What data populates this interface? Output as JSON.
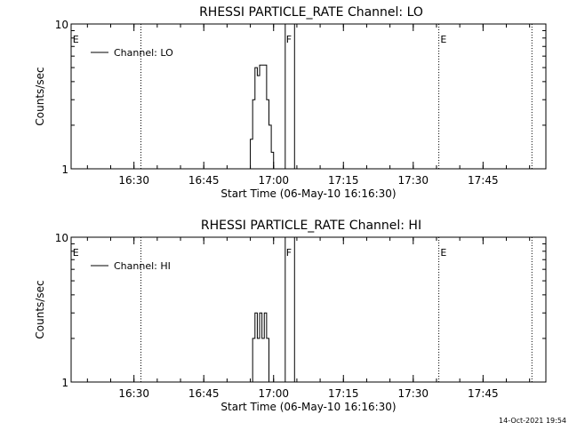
{
  "timestamp": "14-Oct-2021 19:54",
  "chart_data": [
    {
      "type": "line",
      "title": "RHESSI PARTICLE_RATE Channel: LO",
      "xlabel": "Start Time (06-May-10 16:16:30)",
      "ylabel": "Counts/sec",
      "y_scale": "log",
      "ylim": [
        1,
        10
      ],
      "xlim": [
        "16:16:30",
        "17:58:30"
      ],
      "y_ticks": [
        {
          "v": 1,
          "label": "1"
        },
        {
          "v": 10,
          "label": "10"
        }
      ],
      "x_ticks": [
        {
          "t": "16:30",
          "label": "16:30"
        },
        {
          "t": "16:45",
          "label": "16:45"
        },
        {
          "t": "17:00",
          "label": "17:00"
        },
        {
          "t": "17:15",
          "label": "17:15"
        },
        {
          "t": "17:30",
          "label": "17:30"
        },
        {
          "t": "17:45",
          "label": "17:45"
        }
      ],
      "legend": {
        "label": "Channel: LO",
        "position": "top-left"
      },
      "dotted_lines": [
        "16:31:30",
        "17:35:30",
        "17:55:30"
      ],
      "solid_lines": [
        "17:02:30",
        "17:04:30"
      ],
      "annotations": [
        {
          "t": "16:16:50",
          "label": "E"
        },
        {
          "t": "17:02:40",
          "label": "F"
        },
        {
          "t": "17:35:50",
          "label": "E"
        }
      ],
      "series": [
        {
          "x": [
            "16:54:30",
            "16:55:00",
            "16:55:30",
            "16:56:00",
            "16:56:30",
            "16:57:00",
            "16:57:30",
            "16:58:00",
            "16:58:30",
            "16:59:00",
            "16:59:30",
            "17:00:00",
            "17:00:30"
          ],
          "y": [
            1,
            1.6,
            3.0,
            5.0,
            4.4,
            5.2,
            5.2,
            5.2,
            3.0,
            2.0,
            1.3,
            1,
            1
          ]
        }
      ]
    },
    {
      "type": "line",
      "title": "RHESSI PARTICLE_RATE Channel: HI",
      "xlabel": "Start Time (06-May-10 16:16:30)",
      "ylabel": "Counts/sec",
      "y_scale": "log",
      "ylim": [
        1,
        10
      ],
      "xlim": [
        "16:16:30",
        "17:58:30"
      ],
      "y_ticks": [
        {
          "v": 1,
          "label": "1"
        },
        {
          "v": 10,
          "label": "10"
        }
      ],
      "x_ticks": [
        {
          "t": "16:30",
          "label": "16:30"
        },
        {
          "t": "16:45",
          "label": "16:45"
        },
        {
          "t": "17:00",
          "label": "17:00"
        },
        {
          "t": "17:15",
          "label": "17:15"
        },
        {
          "t": "17:30",
          "label": "17:30"
        },
        {
          "t": "17:45",
          "label": "17:45"
        }
      ],
      "legend": {
        "label": "Channel: HI",
        "position": "top-left"
      },
      "dotted_lines": [
        "16:31:30",
        "17:35:30",
        "17:55:30"
      ],
      "solid_lines": [
        "17:02:30",
        "17:04:30"
      ],
      "annotations": [
        {
          "t": "16:16:50",
          "label": "E"
        },
        {
          "t": "17:02:40",
          "label": "F"
        },
        {
          "t": "17:35:50",
          "label": "E"
        }
      ],
      "series": [
        {
          "x": [
            "16:55:00",
            "16:55:30",
            "16:56:00",
            "16:56:30",
            "16:57:00",
            "16:57:30",
            "16:58:00",
            "16:58:30",
            "16:59:00",
            "16:59:30"
          ],
          "y": [
            1,
            2.0,
            3.0,
            2.0,
            3.0,
            2.0,
            3.0,
            2.0,
            1,
            1
          ]
        }
      ]
    }
  ]
}
